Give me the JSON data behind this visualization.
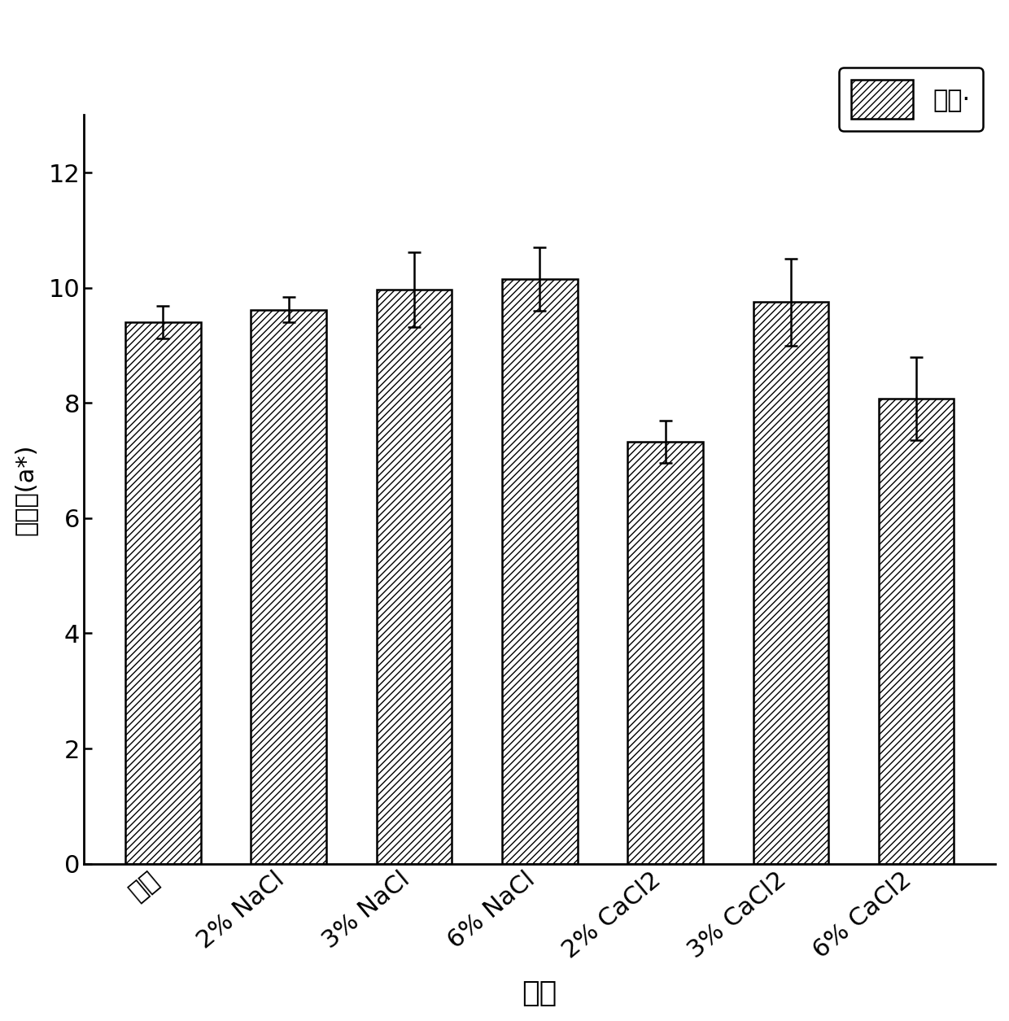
{
  "categories": [
    "清水",
    "2% NaCl",
    "3% NaCl",
    "6% NaCl",
    "2% CaCl2",
    "3% CaCl2",
    "6% CaCl2"
  ],
  "values": [
    9.4,
    9.62,
    9.97,
    10.15,
    7.33,
    9.75,
    8.07
  ],
  "errors": [
    0.28,
    0.22,
    0.65,
    0.55,
    0.37,
    0.75,
    0.72
  ],
  "bar_color": "#ffffff",
  "bar_edgecolor": "#000000",
  "hatch": "////",
  "xlabel": "种类",
  "ylabel": "色差値(a*)",
  "ylim": [
    0,
    13
  ],
  "yticks": [
    0,
    2,
    4,
    6,
    8,
    10,
    12
  ],
  "legend_label": "色差·",
  "legend_patch_color": "#ffffff",
  "legend_patch_edgecolor": "#000000",
  "legend_patch_hatch": "////",
  "background_color": "#ffffff",
  "bar_width": 0.6,
  "xlabel_fontsize": 26,
  "ylabel_fontsize": 22,
  "tick_fontsize": 22,
  "legend_fontsize": 22,
  "capsize": 6,
  "elinewidth": 1.8,
  "ecapthick": 1.8,
  "spine_linewidth": 2.0,
  "bar_linewidth": 1.8
}
